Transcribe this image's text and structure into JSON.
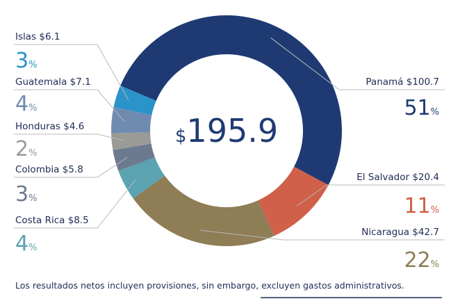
{
  "chart_data": {
    "type": "donut",
    "center_label": {
      "currency": "$",
      "value": 195.9
    },
    "categories": [
      "Panamá",
      "El Salvador",
      "Nicaragua",
      "Costa Rica",
      "Colombia",
      "Honduras",
      "Guatemala",
      "Islas"
    ],
    "values": [
      100.7,
      20.4,
      42.7,
      8.5,
      5.8,
      4.6,
      7.1,
      6.1
    ],
    "value_labels": [
      "$100.7",
      "$20.4",
      "$42.7",
      "$8.5",
      "$5.8",
      "$4.6",
      "$7.1",
      "$6.1"
    ],
    "percents": [
      51,
      11,
      22,
      4,
      3,
      2,
      4,
      3
    ],
    "percent_unit": "%",
    "colors": [
      "#1f3a73",
      "#d0604a",
      "#8e7d55",
      "#5ba3b0",
      "#6c7a8f",
      "#9a9a96",
      "#6f8bb0",
      "#2a93c9"
    ],
    "footnote": "Los resultados netos incluyen provisiones, sin embargo, excluyen gastos administrativos."
  }
}
